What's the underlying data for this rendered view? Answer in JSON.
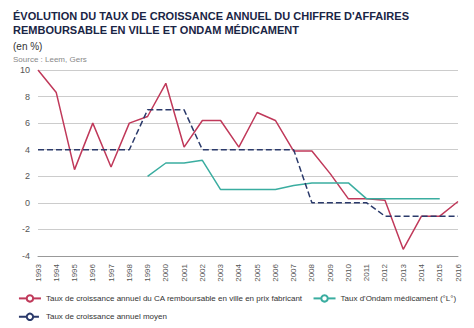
{
  "chart_data": {
    "type": "line",
    "title": "ÉVOLUTION DU TAUX DE CROISSANCE ANNUEL DU CHIFFRE D'AFFAIRES REMBOURSABLE EN VILLE ET ONDAM MÉDICAMENT",
    "subtitle": "(en %)",
    "annotations": [
      "Source : Leem, Gers"
    ],
    "x": [
      1993,
      1994,
      1995,
      1996,
      1997,
      1998,
      1999,
      2000,
      2001,
      2002,
      2003,
      2004,
      2005,
      2006,
      2007,
      2008,
      2009,
      2010,
      2011,
      2012,
      2013,
      2014,
      2015,
      2016
    ],
    "series": [
      {
        "name": "Taux de croissance annuel du CA remboursable en ville en prix fabricant",
        "color": "#c0395a",
        "line_style": "solid",
        "values": [
          10.0,
          8.3,
          2.5,
          6.0,
          2.7,
          6.0,
          6.5,
          9.0,
          4.2,
          6.2,
          6.2,
          4.2,
          6.8,
          6.2,
          3.9,
          3.9,
          2.2,
          0.3,
          0.3,
          0.2,
          -3.5,
          -1.0,
          -1.0,
          0.1
        ]
      },
      {
        "name": "Taux d'Ondam médicament (°L°)",
        "color": "#3aada0",
        "line_style": "solid",
        "values": [
          null,
          null,
          null,
          null,
          null,
          null,
          2.0,
          3.0,
          3.0,
          3.2,
          1.0,
          1.0,
          1.0,
          1.0,
          1.3,
          1.5,
          1.5,
          1.5,
          0.3,
          0.3,
          0.3,
          0.3,
          0.3,
          null
        ]
      },
      {
        "name": "Taux de croissance annuel moyen",
        "color": "#2b3a6b",
        "line_style": "dashed",
        "values": [
          4.0,
          4.0,
          4.0,
          4.0,
          4.0,
          4.0,
          7.0,
          7.0,
          7.0,
          4.0,
          4.0,
          4.0,
          4.0,
          4.0,
          4.0,
          0.0,
          0.0,
          0.0,
          0.0,
          -1.0,
          -1.0,
          -1.0,
          -1.0,
          -1.0
        ]
      }
    ],
    "xlim": [
      1993,
      2016
    ],
    "xticks": [
      1993,
      1994,
      1995,
      1996,
      1997,
      1998,
      1999,
      2000,
      2001,
      2002,
      2003,
      2004,
      2005,
      2006,
      2007,
      2008,
      2009,
      2010,
      2011,
      2012,
      2013,
      2014,
      2015,
      2016
    ],
    "ylim": [
      -4,
      10
    ],
    "yticks": [
      -4,
      -2,
      0,
      2,
      4,
      6,
      8,
      10
    ],
    "grid": true,
    "legend": "bottom"
  }
}
